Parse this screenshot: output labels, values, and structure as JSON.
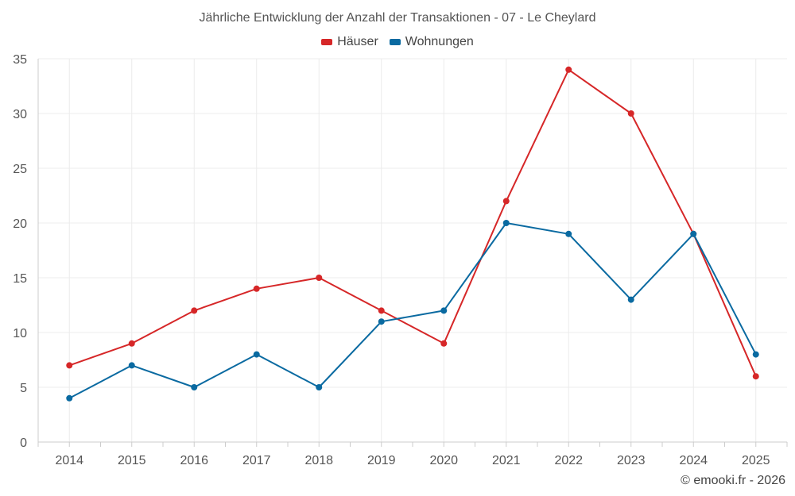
{
  "chart_data": {
    "type": "line",
    "title": "Jährliche Entwicklung der Anzahl der Transaktionen - 07 - Le Cheylard",
    "xlabel": "",
    "ylabel": "",
    "categories": [
      "2014",
      "2015",
      "2016",
      "2017",
      "2018",
      "2019",
      "2020",
      "2021",
      "2022",
      "2023",
      "2024",
      "2025"
    ],
    "ylim": [
      0,
      35
    ],
    "yticks": [
      0,
      5,
      10,
      15,
      20,
      25,
      30,
      35
    ],
    "grid": true,
    "legend_position": "top-center",
    "series": [
      {
        "name": "Häuser",
        "color": "#d62728",
        "values": [
          7,
          9,
          12,
          14,
          15,
          12,
          9,
          22,
          34,
          30,
          19,
          6
        ]
      },
      {
        "name": "Wohnungen",
        "color": "#0a6aa1",
        "values": [
          4,
          7,
          5,
          8,
          5,
          11,
          12,
          20,
          19,
          13,
          19,
          8
        ]
      }
    ]
  },
  "credit": "© emooki.fr - 2026"
}
